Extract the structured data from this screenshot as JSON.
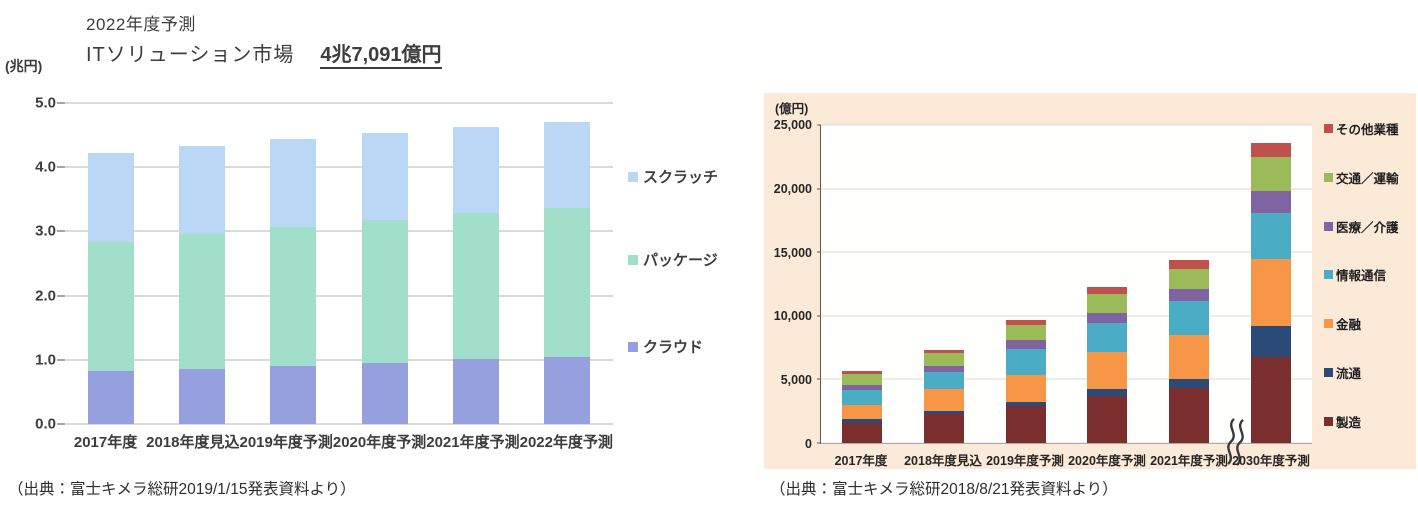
{
  "chart_data": [
    {
      "id": "it-solution-market",
      "type": "bar",
      "stacked": true,
      "title_line1": "2022年度予測",
      "title_line2": "ITソリューション市場",
      "title_highlight": "4兆7,091億円",
      "y_unit_label": "(兆円)",
      "ylim": [
        0,
        5.0
      ],
      "yticks": [
        "5.0",
        "4.0",
        "3.0",
        "2.0",
        "1.0",
        "0.0"
      ],
      "grid": true,
      "legend_position": "right",
      "categories": [
        "2017年度",
        "2018年度見込",
        "2019年度予測",
        "2020年度予測",
        "2021年度予測",
        "2022年度予測"
      ],
      "series": [
        {
          "name": "クラウド",
          "color": "#96A0DE",
          "values": [
            0.83,
            0.86,
            0.9,
            0.95,
            1.01,
            1.05
          ]
        },
        {
          "name": "パッケージ",
          "color": "#A2DFCB",
          "values": [
            2.0,
            2.1,
            2.17,
            2.23,
            2.27,
            2.32
          ]
        },
        {
          "name": "スクラッチ",
          "color": "#BAD7F5",
          "values": [
            1.39,
            1.37,
            1.37,
            1.36,
            1.34,
            1.34
          ]
        }
      ],
      "totals": [
        4.22,
        4.33,
        4.44,
        4.54,
        4.62,
        4.71
      ],
      "legend_top_to_bottom": [
        "スクラッチ",
        "パッケージ",
        "クラウド"
      ],
      "source": "（出典：富士キメラ総研2019/1/15発表資料より）"
    },
    {
      "id": "market-by-industry",
      "type": "bar",
      "stacked": true,
      "y_unit_label": "(億円)",
      "ylim": [
        0,
        25000
      ],
      "yticks": [
        "25,000",
        "20,000",
        "15,000",
        "10,000",
        "5,000",
        "0"
      ],
      "grid": true,
      "legend_position": "right",
      "panel_background": "#FCEAD9",
      "axis_break_between": [
        "2021年度予測",
        "2030年度予測"
      ],
      "categories": [
        "2017年度",
        "2018年度見込",
        "2019年度予測",
        "2020年度予測",
        "2021年度予測",
        "2030年度予測"
      ],
      "series": [
        {
          "name": "製造",
          "color": "#7A2F2E",
          "values": [
            1550,
            2250,
            2900,
            3700,
            4350,
            6800
          ]
        },
        {
          "name": "流通",
          "color": "#2B4A77",
          "values": [
            300,
            300,
            350,
            550,
            700,
            2400
          ]
        },
        {
          "name": "金融",
          "color": "#F79646",
          "values": [
            1150,
            1700,
            2100,
            2900,
            3450,
            5300
          ]
        },
        {
          "name": "情報通信",
          "color": "#4BACC6",
          "values": [
            1200,
            1350,
            2050,
            2250,
            2650,
            3600
          ]
        },
        {
          "name": "医療／介護",
          "color": "#8064A2",
          "values": [
            400,
            450,
            700,
            800,
            950,
            1750
          ]
        },
        {
          "name": "交通／運輸",
          "color": "#9BBB59",
          "values": [
            800,
            1000,
            1200,
            1500,
            1600,
            2650
          ]
        },
        {
          "name": "その他業種",
          "color": "#C0504D",
          "values": [
            300,
            300,
            400,
            550,
            700,
            1100
          ]
        }
      ],
      "totals": [
        5700,
        7350,
        9700,
        12250,
        14400,
        23600
      ],
      "legend_top_to_bottom": [
        "その他業種",
        "交通／運輸",
        "医療／介護",
        "情報通信",
        "金融",
        "流通",
        "製造"
      ],
      "source": "（出典：富士キメラ総研2018/8/21発表資料より）"
    }
  ]
}
